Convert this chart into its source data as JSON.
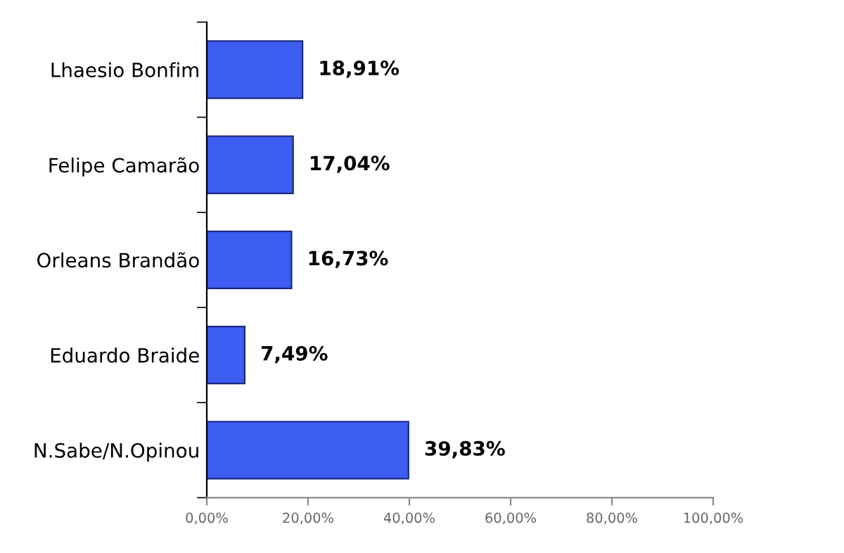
{
  "chart_data": {
    "type": "bar",
    "orientation": "horizontal",
    "categories": [
      "Lhaesio Bonfim",
      "Felipe Camarão",
      "Orleans Brandão",
      "Eduardo Braide",
      "N.Sabe/N.Opinou"
    ],
    "values": [
      18.91,
      17.04,
      16.73,
      7.49,
      39.83
    ],
    "value_labels": [
      "18,91%",
      "17,04%",
      "16,73%",
      "7,49%",
      "39,83%"
    ],
    "color": "#3d5cf0",
    "xlim": [
      0,
      100
    ],
    "xticks": [
      {
        "value": 0,
        "label": "0,00%"
      },
      {
        "value": 20,
        "label": "20,00%"
      },
      {
        "value": 40,
        "label": "40,00%"
      },
      {
        "value": 60,
        "label": "60,00%"
      },
      {
        "value": 80,
        "label": "80,00%"
      },
      {
        "value": 100,
        "label": "100,00%"
      }
    ],
    "grid": false,
    "legend": false
  }
}
